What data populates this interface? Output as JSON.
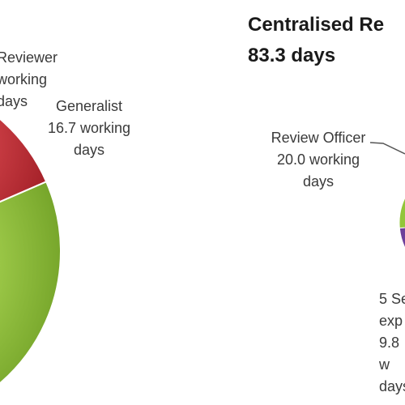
{
  "chart_data": [
    {
      "type": "pie",
      "title": "",
      "slices": [
        {
          "label": "Reviewer\nworking\ndays",
          "value": null,
          "color": "#c62a32"
        },
        {
          "label": "Generalist\n16.7 working\ndays",
          "value": 16.7,
          "color": "#92c63a"
        }
      ]
    },
    {
      "type": "pie",
      "title": "Centralised Re\n83.3 days",
      "slices": [
        {
          "label": "Review Officer\n20.0 working\ndays",
          "value": 20.0,
          "color": "#6d3f9a"
        },
        {
          "label": "5 Se\nexp\n9.8 w\ndays",
          "value": 9.8,
          "color": "#92c63a"
        }
      ]
    }
  ]
}
